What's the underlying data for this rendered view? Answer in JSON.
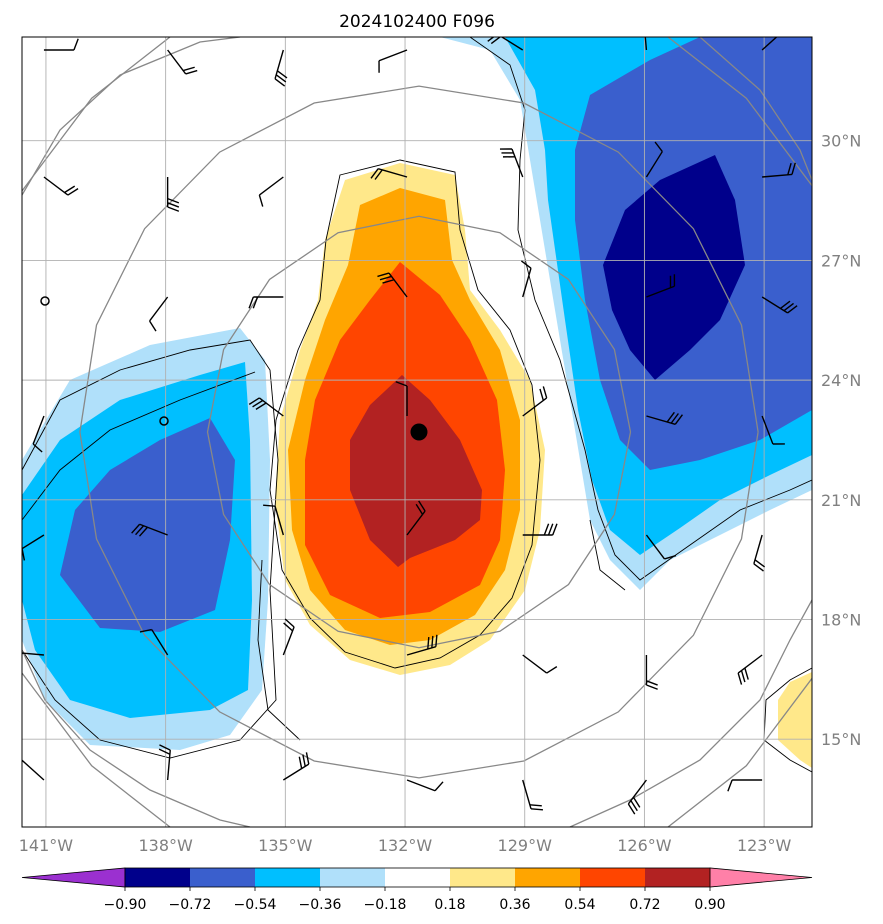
{
  "title": "2024102400 F096",
  "map": {
    "lon_range": [
      -141.6,
      -121.8
    ],
    "lat_range": [
      12.8,
      32.6
    ],
    "lon_ticks": [
      {
        "value": -141,
        "label": "141°W"
      },
      {
        "value": -138,
        "label": "138°W"
      },
      {
        "value": -135,
        "label": "135°W"
      },
      {
        "value": -132,
        "label": "132°W"
      },
      {
        "value": -129,
        "label": "129°W"
      },
      {
        "value": -126,
        "label": "126°W"
      },
      {
        "value": -123,
        "label": "123°W"
      }
    ],
    "lat_ticks": [
      {
        "value": 30,
        "label": "30°N"
      },
      {
        "value": 27,
        "label": "27°N"
      },
      {
        "value": 24,
        "label": "24°N"
      },
      {
        "value": 21,
        "label": "21°N"
      },
      {
        "value": 18,
        "label": "18°N"
      },
      {
        "value": 15,
        "label": "15°N"
      }
    ],
    "grid": true,
    "center_marker": {
      "lon": -131.65,
      "lat": 22.7
    },
    "range_ring_radii_deg": [
      5.3,
      8.5,
      11.6
    ]
  },
  "colorbar": {
    "levels": [
      "−0.90",
      "−0.72",
      "−0.54",
      "−0.36",
      "−0.18",
      "0.18",
      "0.36",
      "0.54",
      "0.72",
      "0.90"
    ],
    "under_color": "#9b30d0",
    "over_color": "#ff80a8",
    "colors": [
      "#00008b",
      "#3a5fcd",
      "#00bfff",
      "#b0e0fa",
      "#ffffff",
      "#ffe88a",
      "#ffa500",
      "#ff4500",
      "#b22222"
    ]
  },
  "fields": {
    "shading_colors": {
      "neg1": "#b0e0fa",
      "neg2": "#00bfff",
      "neg3": "#3a5fcd",
      "neg4": "#00008b",
      "pos1": "#ffe88a",
      "pos2": "#ffa500",
      "pos3": "#ff4500",
      "pos4": "#b22222"
    }
  }
}
